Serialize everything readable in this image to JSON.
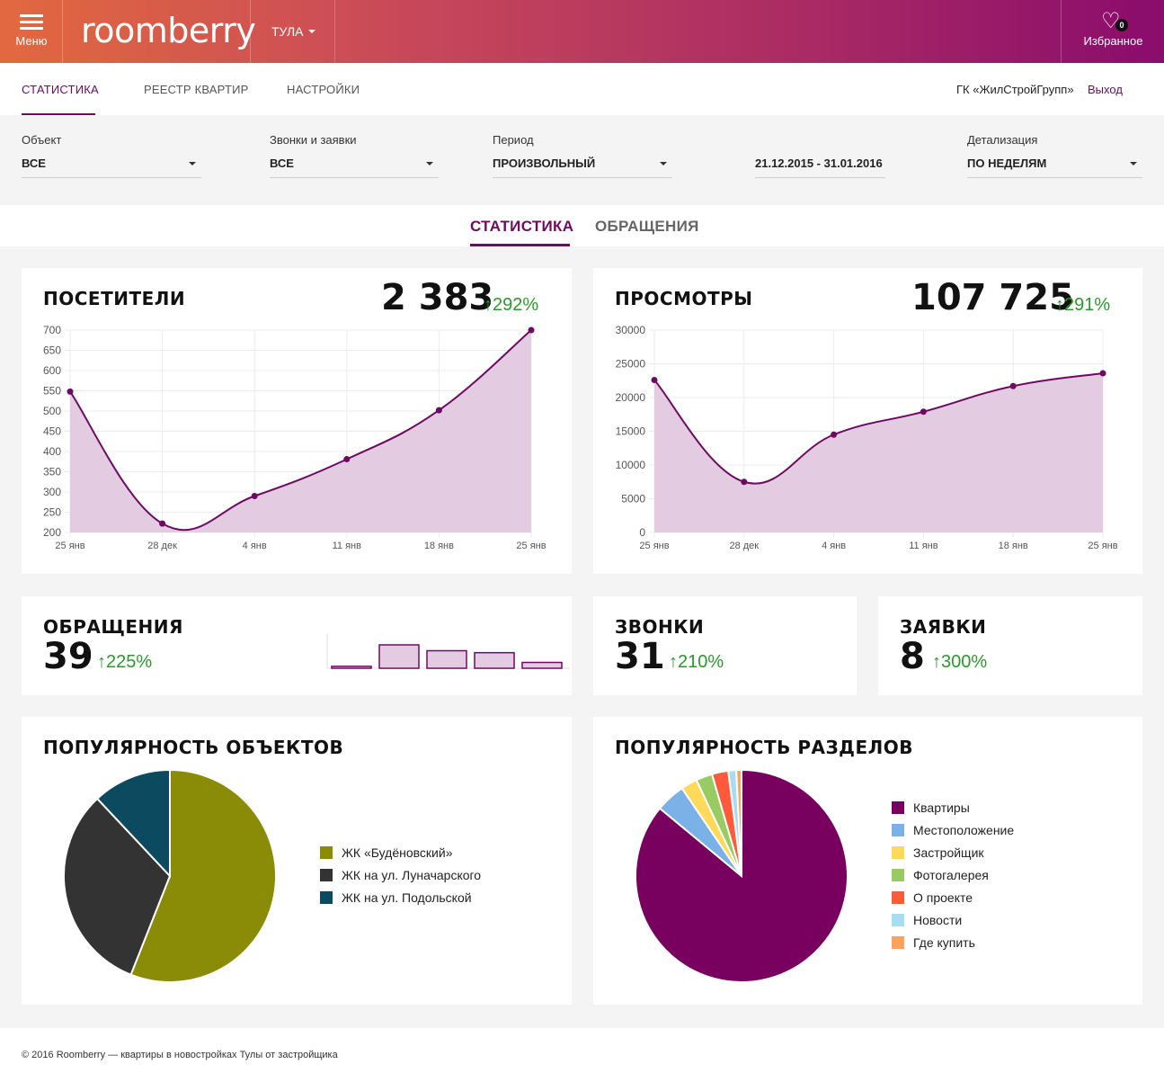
{
  "header": {
    "menu_label": "Меню",
    "logo": "roomberry",
    "city": "ТУЛА",
    "favorites_label": "Избранное",
    "favorites_count": "0"
  },
  "subnav": {
    "tabs": [
      "СТАТИСТИКА",
      "РЕЕСТР КВАРТИР",
      "НАСТРОЙКИ"
    ],
    "company": "ГК «ЖилСтройГрупп»",
    "logout": "Выход"
  },
  "filters": {
    "object": {
      "label": "Объект",
      "value": "ВСЕ"
    },
    "calls": {
      "label": "Звонки и заявки",
      "value": "ВСЕ"
    },
    "period": {
      "label": "Период",
      "value": "ПРОИЗВОЛЬНЫЙ"
    },
    "dates": {
      "value": "21.12.2015 - 31.01.2016"
    },
    "detail": {
      "label": "Детализация",
      "value": "ПО НЕДЕЛЯМ"
    }
  },
  "section_tabs": [
    "СТАТИСТИКА",
    "ОБРАЩЕНИЯ"
  ],
  "visitors": {
    "title": "ПОСЕТИТЕЛИ",
    "total": "2 383",
    "growth": "↑292%"
  },
  "views": {
    "title": "ПРОСМОТРЫ",
    "total": "107 725",
    "growth": "↑291%"
  },
  "requests": {
    "title": "ОБРАЩЕНИЯ",
    "total": "39",
    "growth": "↑225%"
  },
  "calls_card": {
    "title": "ЗВОНКИ",
    "total": "31",
    "growth": "↑210%"
  },
  "applications": {
    "title": "ЗАЯВКИ",
    "total": "8",
    "growth": "↑300%"
  },
  "objects_popularity": {
    "title": "ПОПУЛЯРНОСТЬ ОБЪЕКТОВ"
  },
  "sections_popularity": {
    "title": "ПОПУЛЯРНОСТЬ РАЗДЕЛОВ"
  },
  "colors": {
    "accent": "#6f0a63",
    "fill": "#e3cbe2",
    "growth": "#2a9a2a"
  },
  "chart_data": [
    {
      "type": "area",
      "categories": [
        "25 янв",
        "28 дек",
        "4 янв",
        "11 янв",
        "18 янв",
        "25 янв"
      ],
      "values": [
        548,
        222,
        290,
        381,
        502,
        700
      ],
      "ylim": [
        200,
        700
      ],
      "yticks": [
        200,
        250,
        300,
        350,
        400,
        450,
        500,
        550,
        600,
        650,
        700
      ],
      "grid": true
    },
    {
      "type": "area",
      "categories": [
        "25 янв",
        "28 дек",
        "4 янв",
        "11 янв",
        "18 янв",
        "25 янв"
      ],
      "values": [
        22600,
        7500,
        14500,
        17900,
        21700,
        23600
      ],
      "ylim": [
        0,
        30000
      ],
      "yticks": [
        0,
        5000,
        10000,
        15000,
        20000,
        25000,
        30000
      ],
      "grid": true
    },
    {
      "type": "bar",
      "values": [
        1,
        12,
        9,
        8,
        3
      ]
    },
    {
      "type": "pie",
      "labels": [
        "ЖК «Будёновский»",
        "ЖК на ул. Луначарского",
        "ЖК на ул. Подольской"
      ],
      "values": [
        56,
        32,
        12
      ],
      "colors": [
        "#8a8c07",
        "#333333",
        "#0c4a60"
      ]
    },
    {
      "type": "pie",
      "labels": [
        "Квартиры",
        "Местоположение",
        "Застройщик",
        "Фотогалерея",
        "О проекте",
        "Новости",
        "Где купить"
      ],
      "values": [
        86,
        4.5,
        2.5,
        2.5,
        2.5,
        1.2,
        0.8
      ],
      "colors": [
        "#78005e",
        "#7ab1e6",
        "#ffd95a",
        "#98cc63",
        "#ff5a3c",
        "#a8dcf0",
        "#ffa35c"
      ]
    }
  ]
}
